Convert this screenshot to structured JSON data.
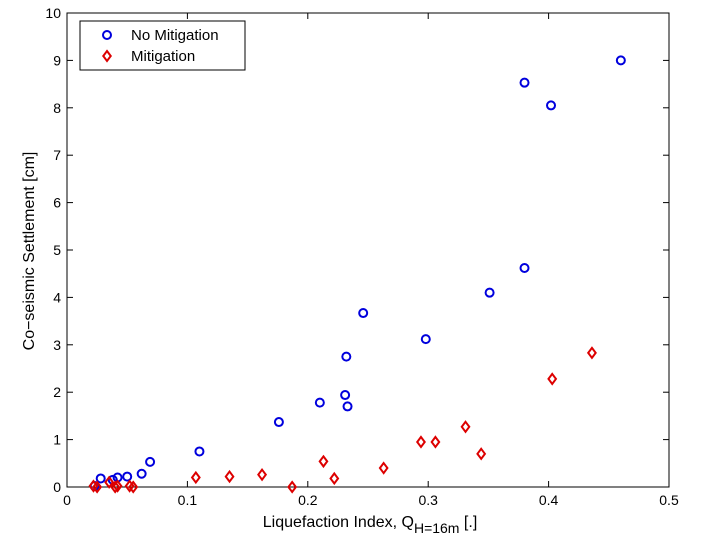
{
  "chart_data": {
    "type": "scatter",
    "title": "",
    "xlabel_main": "Liquefaction Index, Q",
    "xlabel_sub": "H=16m",
    "xlabel_unit": " [.]",
    "ylabel": "Co−seismic Settlement [cm]",
    "xlim": [
      0,
      0.5
    ],
    "ylim": [
      0,
      10
    ],
    "xticks": [
      0,
      0.1,
      0.2,
      0.3,
      0.4,
      0.5
    ],
    "xtick_labels": [
      "0",
      "0.1",
      "0.2",
      "0.3",
      "0.4",
      "0.5"
    ],
    "yticks": [
      0,
      1,
      2,
      3,
      4,
      5,
      6,
      7,
      8,
      9,
      10
    ],
    "ytick_labels": [
      "0",
      "1",
      "2",
      "3",
      "4",
      "5",
      "6",
      "7",
      "8",
      "9",
      "10"
    ],
    "grid": false,
    "legend_position": "top-left",
    "series": [
      {
        "name": "No Mitigation",
        "marker": "circle",
        "color": "#0000dd",
        "x": [
          0.023,
          0.028,
          0.038,
          0.042,
          0.05,
          0.062,
          0.069,
          0.11,
          0.176,
          0.21,
          0.231,
          0.232,
          0.233,
          0.246,
          0.298,
          0.351,
          0.38,
          0.38,
          0.402,
          0.46
        ],
        "y": [
          0.02,
          0.18,
          0.15,
          0.2,
          0.22,
          0.28,
          0.53,
          0.75,
          1.37,
          1.78,
          1.94,
          2.75,
          1.7,
          3.67,
          3.12,
          4.1,
          4.62,
          8.53,
          8.05,
          9.0
        ]
      },
      {
        "name": "Mitigation",
        "marker": "diamond",
        "color": "#dd0000",
        "x": [
          0.022,
          0.025,
          0.035,
          0.04,
          0.042,
          0.052,
          0.055,
          0.107,
          0.135,
          0.162,
          0.187,
          0.213,
          0.222,
          0.263,
          0.294,
          0.306,
          0.331,
          0.344,
          0.403,
          0.436
        ],
        "y": [
          0.02,
          0.0,
          0.1,
          0.0,
          0.02,
          0.02,
          0.0,
          0.2,
          0.22,
          0.26,
          0.0,
          0.54,
          0.18,
          0.4,
          0.95,
          0.95,
          1.27,
          0.7,
          2.28,
          2.83
        ]
      }
    ]
  }
}
